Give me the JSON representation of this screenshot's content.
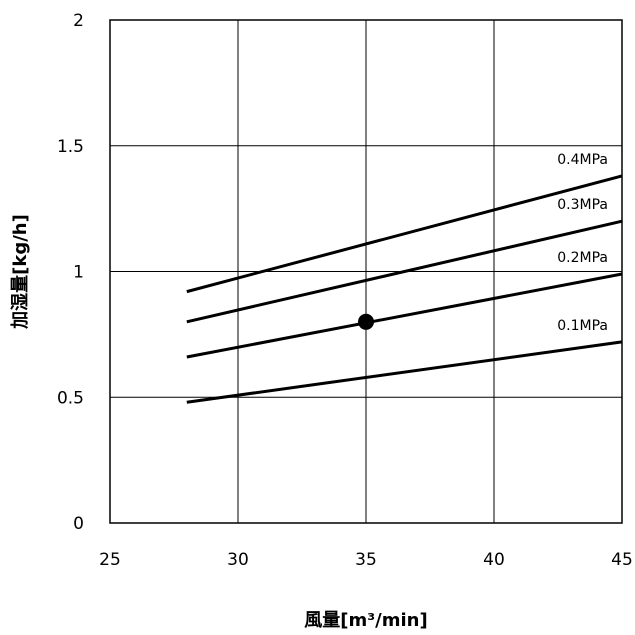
{
  "chart_data": {
    "type": "line",
    "xlabel": "風量[m³/min]",
    "ylabel": "加湿量[kg/h]",
    "xlim": [
      25,
      45
    ],
    "ylim": [
      0,
      2
    ],
    "xticks": [
      25,
      30,
      35,
      40,
      45
    ],
    "yticks": [
      0,
      0.5,
      1,
      1.5,
      2
    ],
    "xtick_labels": [
      "25",
      "30",
      "35",
      "40",
      "45"
    ],
    "ytick_labels": [
      "0",
      "0.5",
      "1",
      "1.5",
      "2"
    ],
    "grid": true,
    "series": [
      {
        "name": "0.1MPa",
        "x": [
          28,
          45
        ],
        "y": [
          0.48,
          0.72
        ]
      },
      {
        "name": "0.2MPa",
        "x": [
          28,
          45
        ],
        "y": [
          0.66,
          0.99
        ]
      },
      {
        "name": "0.3MPa",
        "x": [
          28,
          45
        ],
        "y": [
          0.8,
          1.2
        ]
      },
      {
        "name": "0.4MPa",
        "x": [
          28,
          45
        ],
        "y": [
          0.92,
          1.38
        ]
      }
    ],
    "marker_point": {
      "x": 35,
      "y": 0.8
    }
  }
}
